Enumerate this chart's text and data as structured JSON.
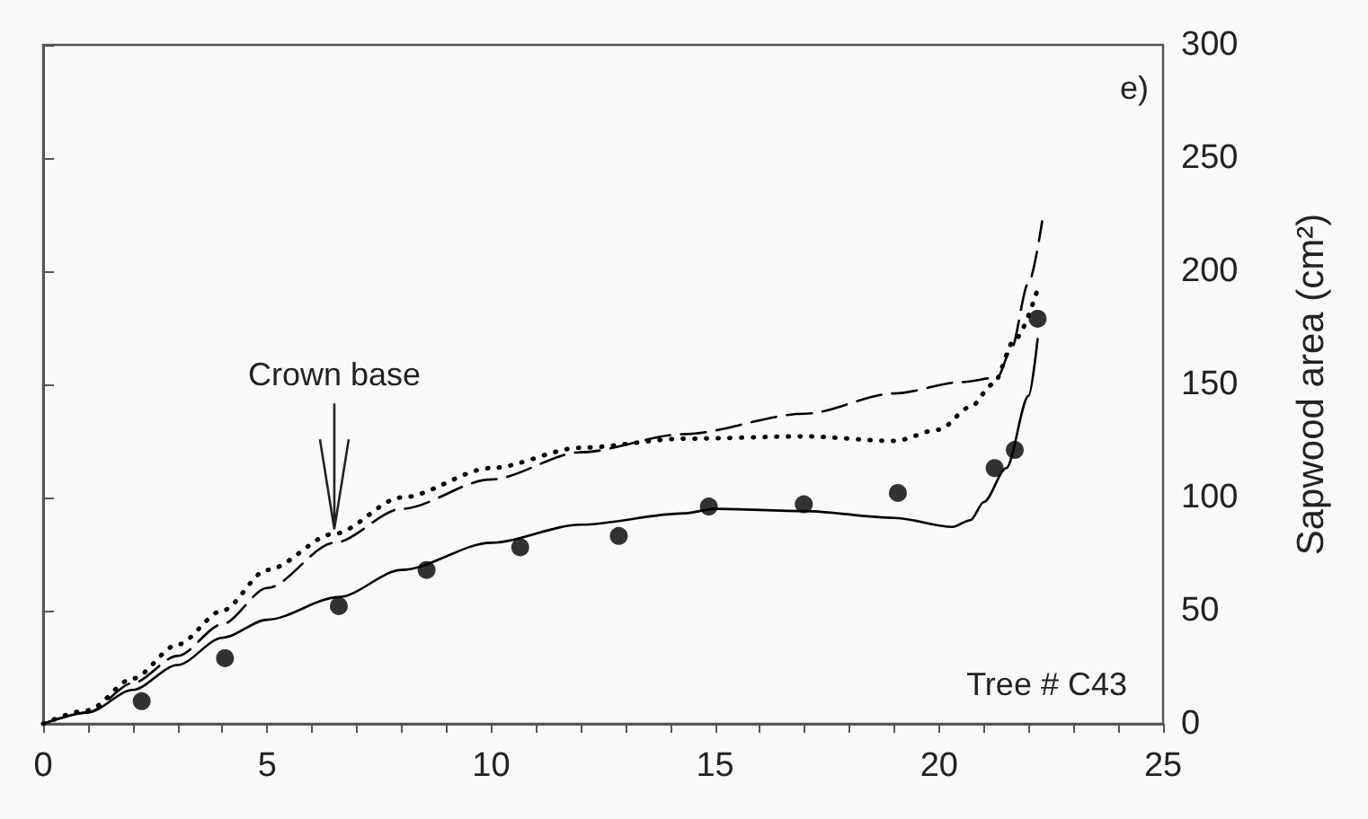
{
  "chart_data": {
    "type": "line",
    "ylabel": "Sapwood area (cm²)",
    "xlim": [
      0,
      25
    ],
    "xticks": [
      0,
      {
        "value": 1,
        "label": null
      },
      {
        "value": 2,
        "label": null
      },
      {
        "value": 3,
        "label": null
      },
      {
        "value": 4,
        "label": null
      },
      5,
      {
        "value": 6,
        "label": null
      },
      {
        "value": 7,
        "label": null
      },
      {
        "value": 8,
        "label": null
      },
      {
        "value": 9,
        "label": null
      },
      10,
      {
        "value": 11,
        "label": null
      },
      {
        "value": 12,
        "label": null
      },
      {
        "value": 13,
        "label": null
      },
      {
        "value": 14,
        "label": null
      },
      15,
      {
        "value": 16,
        "label": null
      },
      {
        "value": 17,
        "label": null
      },
      {
        "value": 18,
        "label": null
      },
      {
        "value": 19,
        "label": null
      },
      20,
      {
        "value": 21,
        "label": null
      },
      {
        "value": 22,
        "label": null
      },
      {
        "value": 23,
        "label": null
      },
      {
        "value": 24,
        "label": null
      },
      25
    ],
    "ylim": [
      0,
      300
    ],
    "yticks": [
      0,
      50,
      100,
      150,
      200,
      250,
      300
    ],
    "grid": false,
    "annotations": [
      "e)",
      "Tree # C43",
      {
        "text": "Crown base",
        "x": 6.5,
        "y": 86
      }
    ],
    "series": [
      {
        "line_style": "solid",
        "color": "#000000",
        "x": [
          0,
          1,
          2,
          3,
          4,
          5,
          6.6,
          8,
          10,
          12,
          14.3,
          15,
          17,
          19,
          20.3,
          20.7,
          21,
          21.5,
          22,
          22.2
        ],
        "values": [
          0,
          5,
          15,
          26,
          38,
          46,
          56,
          68,
          80,
          88,
          93,
          95,
          94,
          91,
          87,
          90,
          98,
          113,
          145,
          170
        ]
      },
      {
        "line_style": "dashed",
        "color": "#000000",
        "x": [
          0,
          1,
          2,
          3,
          4,
          5,
          6.5,
          8,
          10,
          12,
          14.3,
          17,
          19,
          20.5,
          21.3,
          21.6,
          22,
          22.3
        ],
        "values": [
          0,
          5,
          18,
          30,
          44,
          60,
          80,
          95,
          108,
          120,
          128,
          137,
          146,
          151,
          153,
          165,
          195,
          222
        ]
      },
      {
        "line_style": "dotted",
        "color": "#000000",
        "x": [
          0,
          1,
          2,
          3,
          4,
          5,
          6.5,
          8,
          10,
          12,
          14.3,
          17,
          19,
          20,
          20.7,
          21.2,
          21.7,
          22.2
        ],
        "values": [
          0,
          6,
          20,
          35,
          50,
          68,
          84,
          100,
          113,
          122,
          126,
          127,
          125,
          130,
          140,
          150,
          170,
          192
        ]
      },
      {
        "type": "scatter",
        "marker": "circle",
        "color": "#000000",
        "x": [
          2.2,
          4.06,
          6.6,
          8.56,
          10.65,
          12.85,
          14.86,
          16.98,
          19.08,
          21.24,
          21.69,
          22.2
        ],
        "values": [
          10,
          29,
          52,
          68,
          78,
          83,
          96,
          97,
          102,
          113,
          121,
          179
        ]
      }
    ]
  }
}
